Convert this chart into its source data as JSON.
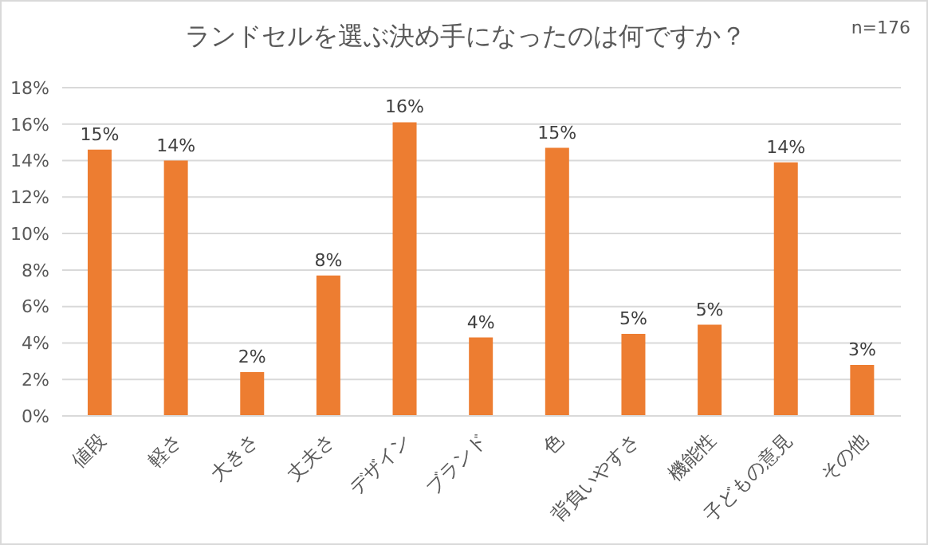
{
  "chart_data": {
    "type": "bar",
    "title": "ランドセルを選ぶ決め手になったのは何ですか？",
    "annotations": [
      "n=176"
    ],
    "categories": [
      "値段",
      "軽さ",
      "大きさ",
      "丈夫さ",
      "デザイン",
      "ブランド",
      "色",
      "背負いやすさ",
      "機能性",
      "子どもの意見",
      "その他"
    ],
    "values": [
      14.6,
      14.0,
      2.4,
      7.7,
      16.1,
      4.3,
      14.7,
      4.5,
      5.0,
      13.9,
      2.8
    ],
    "value_labels": [
      "15%",
      "14%",
      "2%",
      "8%",
      "16%",
      "4%",
      "15%",
      "5%",
      "5%",
      "14%",
      "3%"
    ],
    "color": "#ed7d31",
    "ylim": [
      0,
      18
    ],
    "yticks": [
      {
        "value": 0,
        "label": "0%"
      },
      {
        "value": 2,
        "label": "2%"
      },
      {
        "value": 4,
        "label": "4%"
      },
      {
        "value": 6,
        "label": "6%"
      },
      {
        "value": 8,
        "label": "8%"
      },
      {
        "value": 10,
        "label": "10%"
      },
      {
        "value": 12,
        "label": "12%"
      },
      {
        "value": 14,
        "label": "14%"
      },
      {
        "value": 16,
        "label": "16%"
      },
      {
        "value": 18,
        "label": "18%"
      }
    ],
    "grid": "y",
    "legend": false
  }
}
